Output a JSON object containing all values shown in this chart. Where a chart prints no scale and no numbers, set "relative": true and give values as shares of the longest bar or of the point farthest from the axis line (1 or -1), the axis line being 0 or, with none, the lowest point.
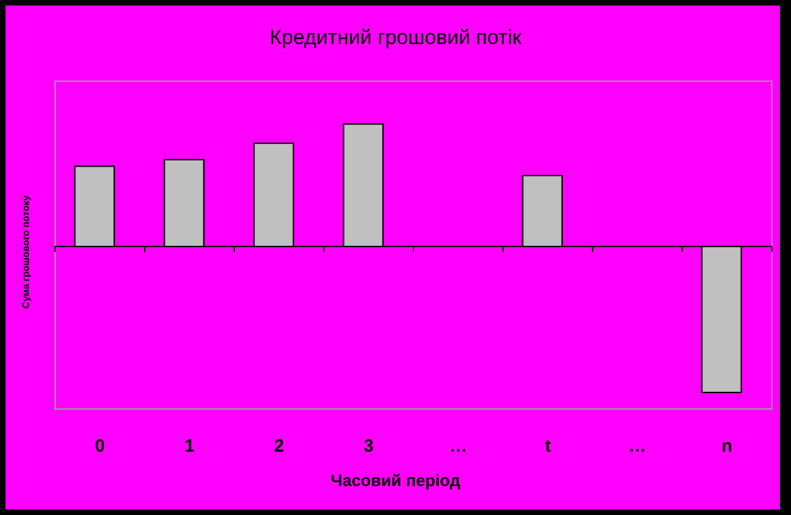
{
  "chart_data": {
    "type": "bar",
    "title": "Кредитний грошовий потік",
    "xlabel": "Часовий період",
    "ylabel": "Сума грошового потоку",
    "categories": [
      "0",
      "1",
      "2",
      "3",
      "…",
      "t",
      "…",
      "n"
    ],
    "values": [
      0.55,
      0.595,
      0.707,
      0.839,
      null,
      0.486,
      null,
      -1
    ],
    "color": "#c0c0c0",
    "relative": true
  }
}
